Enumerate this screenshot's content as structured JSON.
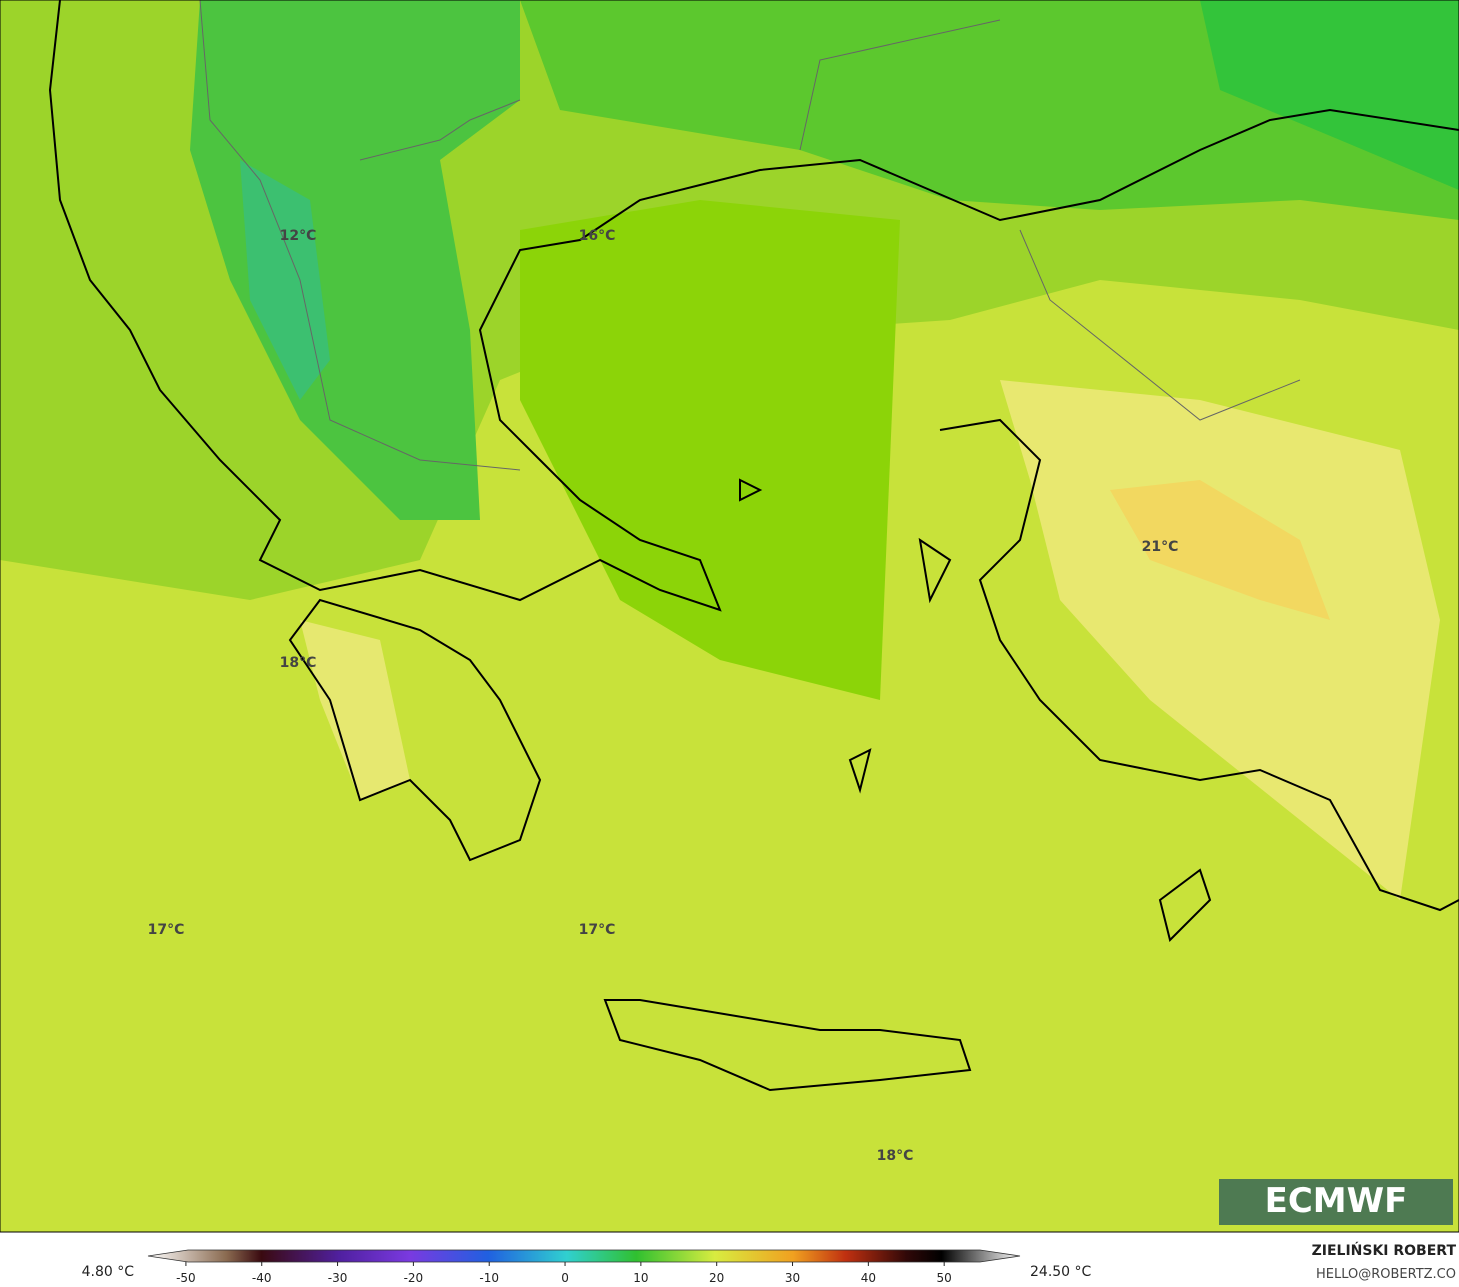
{
  "map": {
    "labels": [
      "12°C",
      "16°C",
      "21°C",
      "18°C",
      "17°C",
      "17°C",
      "18°C"
    ]
  },
  "colorbar": {
    "min_label": "4.80 °C",
    "max_label": "24.50 °C",
    "xlim": [
      -55,
      60
    ],
    "ticks": [
      -50,
      -40,
      -30,
      -20,
      -10,
      0,
      10,
      20,
      30,
      40,
      50
    ]
  },
  "credit": {
    "author": "ZIELIŃSKI ROBERT",
    "email": "HELLO@ROBERTZ.CO",
    "logo": "ECMWF"
  }
}
